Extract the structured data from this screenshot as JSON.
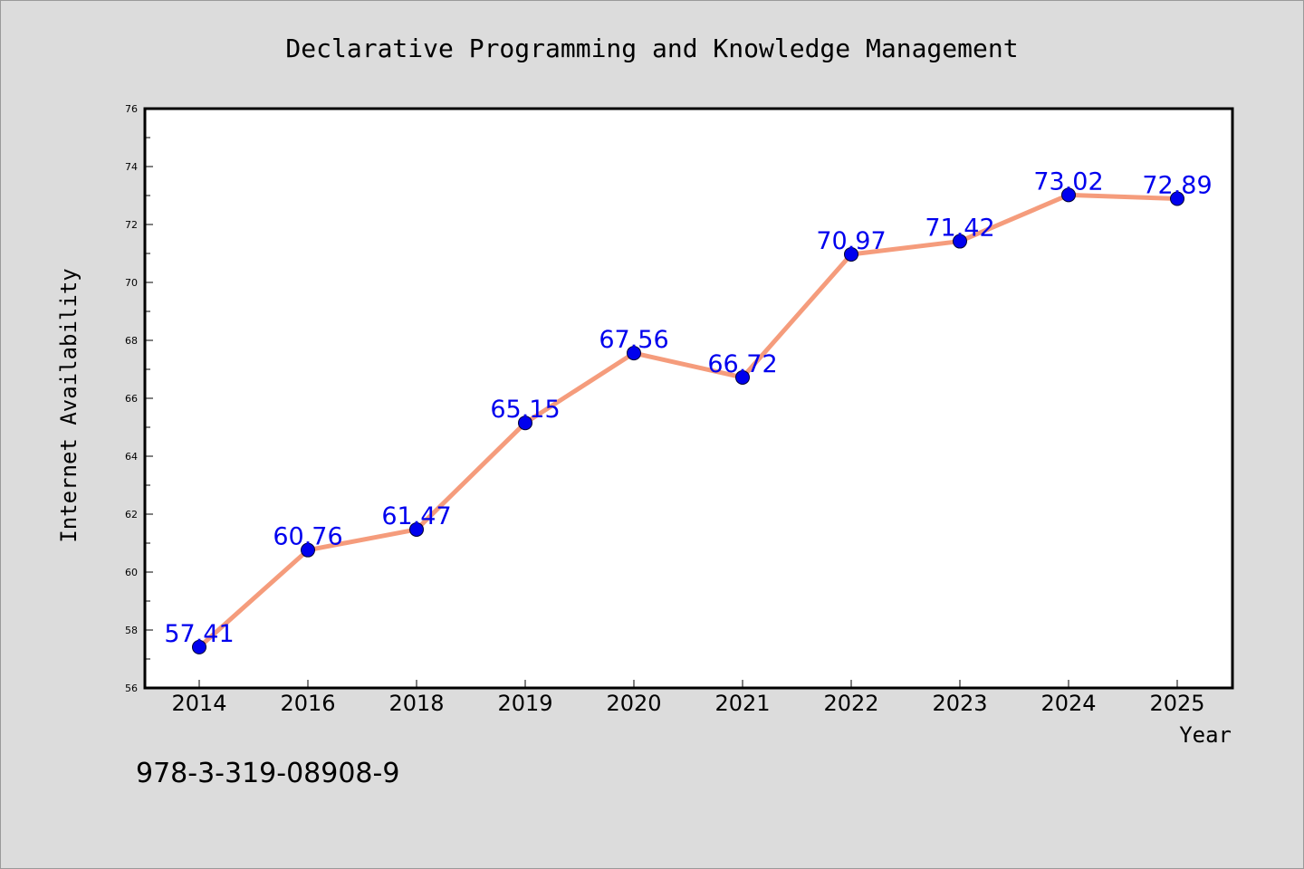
{
  "chart_data": {
    "type": "line",
    "title": "Declarative Programming and Knowledge Management",
    "xlabel": "Year",
    "ylabel": "Internet Availability",
    "categories": [
      "2014",
      "2016",
      "2018",
      "2019",
      "2020",
      "2021",
      "2022",
      "2023",
      "2024",
      "2025"
    ],
    "series": [
      {
        "values": [
          57.41,
          60.76,
          61.47,
          65.15,
          67.56,
          66.72,
          70.97,
          71.42,
          73.02,
          72.89
        ],
        "line_color": "#f59c7c",
        "marker_color": "#0000ee"
      }
    ],
    "data_labels": [
      "57.41",
      "60.76",
      "61.47",
      "65.15",
      "67.56",
      "66.72",
      "70.97",
      "71.42",
      "73.02",
      "72.89"
    ],
    "ylim": [
      56,
      76
    ],
    "yticks": [
      "56",
      "58",
      "60",
      "62",
      "64",
      "66",
      "68",
      "70",
      "72",
      "74",
      "76"
    ],
    "grid": false,
    "data_label_color": "#0000ee"
  },
  "footer": {
    "isbn": "978-3-319-08908-9"
  }
}
